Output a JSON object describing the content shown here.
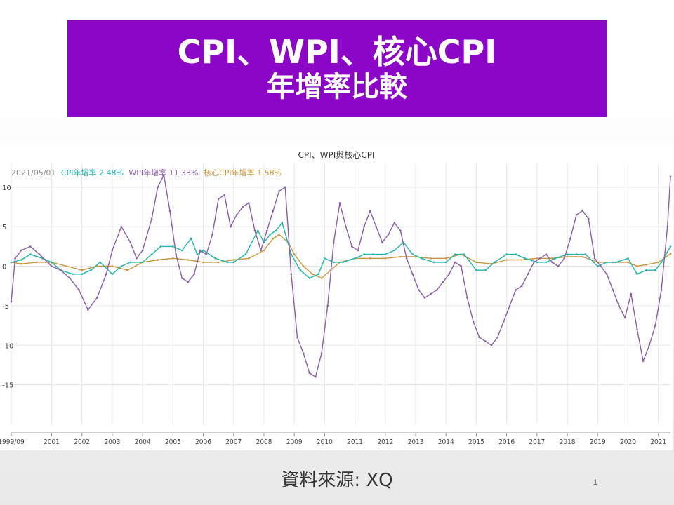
{
  "slide": {
    "title_line1": "CPI、WPI、核心CPI",
    "title_line2": "年增率比較",
    "source": "資料來源: XQ",
    "page_number": "1"
  },
  "chart_data": {
    "type": "line",
    "title": "CPI、WPI與核心CPI",
    "legend": {
      "date": "2021/05/01",
      "entries": [
        "CPI年增率 2.48%",
        "WPI年增率 11.33%",
        "核心CPI年增率 1.58%"
      ],
      "placement": "top-left"
    },
    "x_tick_labels": [
      "1999/09",
      "2001",
      "2002",
      "2003",
      "2004",
      "2005",
      "2006",
      "2007",
      "2008",
      "2009",
      "2010",
      "2011",
      "2012",
      "2013",
      "2014",
      "2015",
      "2016",
      "2017",
      "2018",
      "2019",
      "2020",
      "2021"
    ],
    "x_tick_dates": [
      1999.67,
      2001,
      2002,
      2003,
      2004,
      2005,
      2006,
      2007,
      2008,
      2009,
      2010,
      2011,
      2012,
      2013,
      2014,
      2015,
      2016,
      2017,
      2018,
      2019,
      2020,
      2021
    ],
    "xlim": [
      1999.67,
      2021.4
    ],
    "y_ticks": [
      10,
      5,
      0,
      -5,
      -10,
      -15
    ],
    "y_tick_labels": [
      "10",
      "5",
      "0",
      "-5",
      "-10",
      "-15"
    ],
    "ylim": [
      -20,
      13
    ],
    "grid": true,
    "colors": {
      "cpi": "#1fb5ad",
      "wpi": "#8c5fa8",
      "core": "#c8963c"
    },
    "series": [
      {
        "key": "cpi",
        "x": [
          1999.67,
          2000.0,
          2000.3,
          2000.7,
          2001.0,
          2001.3,
          2001.7,
          2002.0,
          2002.3,
          2002.6,
          2003.0,
          2003.3,
          2003.6,
          2004.0,
          2004.3,
          2004.6,
          2005.0,
          2005.3,
          2005.6,
          2005.8,
          2006.0,
          2006.4,
          2006.8,
          2007.0,
          2007.4,
          2007.8,
          2008.0,
          2008.2,
          2008.4,
          2008.6,
          2008.9,
          2009.2,
          2009.5,
          2009.8,
          2010.0,
          2010.3,
          2010.6,
          2011.0,
          2011.3,
          2011.6,
          2012.0,
          2012.3,
          2012.6,
          2012.9,
          2013.2,
          2013.6,
          2014.0,
          2014.3,
          2014.6,
          2015.0,
          2015.3,
          2015.6,
          2016.0,
          2016.3,
          2016.6,
          2017.0,
          2017.3,
          2017.6,
          2018.0,
          2018.3,
          2018.6,
          2019.0,
          2019.3,
          2019.6,
          2020.0,
          2020.3,
          2020.6,
          2020.9,
          2021.1,
          2021.4
        ],
        "values": [
          0.5,
          0.8,
          1.5,
          1.0,
          0.5,
          -0.5,
          -1.0,
          -1.0,
          -0.5,
          0.5,
          -1.0,
          0.0,
          0.5,
          0.5,
          1.5,
          2.5,
          2.5,
          2.0,
          3.5,
          1.5,
          2.0,
          1.0,
          0.5,
          0.5,
          1.5,
          4.5,
          3.0,
          4.0,
          4.5,
          5.5,
          1.5,
          -0.5,
          -1.5,
          -1.0,
          1.0,
          0.5,
          0.5,
          1.0,
          1.5,
          1.5,
          1.5,
          2.0,
          3.0,
          1.5,
          1.0,
          0.5,
          0.5,
          1.5,
          1.5,
          -0.5,
          -0.5,
          0.5,
          1.5,
          1.5,
          1.0,
          0.5,
          0.5,
          1.0,
          1.5,
          1.5,
          1.5,
          0.0,
          0.5,
          0.5,
          1.0,
          -1.0,
          -0.5,
          -0.5,
          0.5,
          2.48
        ]
      },
      {
        "key": "wpi",
        "x": [
          1999.67,
          1999.8,
          2000.0,
          2000.3,
          2000.6,
          2001.0,
          2001.3,
          2001.6,
          2001.9,
          2002.2,
          2002.5,
          2002.8,
          2003.0,
          2003.3,
          2003.6,
          2003.8,
          2004.0,
          2004.3,
          2004.5,
          2004.7,
          2004.9,
          2005.1,
          2005.3,
          2005.5,
          2005.7,
          2005.9,
          2006.1,
          2006.3,
          2006.5,
          2006.7,
          2006.9,
          2007.1,
          2007.3,
          2007.5,
          2007.7,
          2007.9,
          2008.1,
          2008.3,
          2008.5,
          2008.7,
          2008.9,
          2009.1,
          2009.3,
          2009.5,
          2009.7,
          2009.9,
          2010.1,
          2010.3,
          2010.5,
          2010.7,
          2010.9,
          2011.1,
          2011.3,
          2011.5,
          2011.7,
          2011.9,
          2012.1,
          2012.3,
          2012.5,
          2012.7,
          2012.9,
          2013.1,
          2013.3,
          2013.5,
          2013.7,
          2013.9,
          2014.1,
          2014.3,
          2014.5,
          2014.7,
          2014.9,
          2015.1,
          2015.3,
          2015.5,
          2015.7,
          2015.9,
          2016.1,
          2016.3,
          2016.5,
          2016.7,
          2016.9,
          2017.1,
          2017.3,
          2017.5,
          2017.7,
          2017.9,
          2018.1,
          2018.3,
          2018.5,
          2018.7,
          2018.9,
          2019.1,
          2019.3,
          2019.5,
          2019.7,
          2019.9,
          2020.1,
          2020.3,
          2020.5,
          2020.7,
          2020.9,
          2021.1,
          2021.3,
          2021.4
        ],
        "values": [
          -4.5,
          1.0,
          2.0,
          2.5,
          1.5,
          0.0,
          -0.5,
          -1.5,
          -3.0,
          -5.5,
          -4.0,
          -1.0,
          2.0,
          5.0,
          3.0,
          1.0,
          2.0,
          6.0,
          10.0,
          11.5,
          7.0,
          1.5,
          -1.5,
          -2.0,
          -1.0,
          2.0,
          1.5,
          4.0,
          8.5,
          9.0,
          5.0,
          6.5,
          7.5,
          8.0,
          4.5,
          2.0,
          4.5,
          7.0,
          9.5,
          10.0,
          -1.0,
          -9.0,
          -11.0,
          -13.5,
          -14.0,
          -11.0,
          -5.0,
          3.0,
          8.0,
          5.0,
          2.5,
          2.0,
          5.0,
          7.0,
          5.0,
          3.0,
          4.0,
          5.5,
          4.5,
          1.0,
          -1.0,
          -3.0,
          -4.0,
          -3.5,
          -3.0,
          -2.0,
          -1.0,
          0.5,
          0.0,
          -4.0,
          -7.0,
          -9.0,
          -9.5,
          -10.0,
          -9.0,
          -7.0,
          -5.0,
          -3.0,
          -2.5,
          -1.0,
          0.5,
          1.0,
          1.5,
          0.5,
          0.0,
          1.0,
          3.5,
          6.5,
          7.0,
          6.0,
          1.0,
          0.0,
          -1.0,
          -3.0,
          -5.0,
          -6.5,
          -3.5,
          -8.0,
          -12.0,
          -10.0,
          -7.5,
          -3.0,
          5.0,
          11.33
        ]
      },
      {
        "key": "core",
        "x": [
          1999.67,
          2000.0,
          2000.5,
          2001.0,
          2001.5,
          2002.0,
          2002.5,
          2003.0,
          2003.5,
          2004.0,
          2004.5,
          2005.0,
          2005.5,
          2006.0,
          2006.5,
          2007.0,
          2007.5,
          2008.0,
          2008.3,
          2008.5,
          2008.8,
          2009.0,
          2009.3,
          2009.6,
          2009.9,
          2010.2,
          2010.5,
          2011.0,
          2011.5,
          2012.0,
          2012.5,
          2013.0,
          2013.5,
          2014.0,
          2014.5,
          2015.0,
          2015.5,
          2016.0,
          2016.5,
          2017.0,
          2017.5,
          2018.0,
          2018.5,
          2019.0,
          2019.5,
          2020.0,
          2020.3,
          2020.6,
          2021.0,
          2021.4
        ],
        "values": [
          0.5,
          0.3,
          0.5,
          0.5,
          0.0,
          -0.5,
          0.0,
          0.0,
          -0.5,
          0.5,
          0.8,
          1.0,
          0.8,
          0.5,
          0.5,
          0.8,
          1.0,
          2.0,
          3.5,
          4.0,
          3.0,
          1.5,
          0.0,
          -1.0,
          -1.5,
          -0.5,
          0.5,
          1.0,
          1.0,
          1.0,
          1.2,
          1.2,
          1.0,
          1.0,
          1.5,
          0.5,
          0.3,
          0.8,
          0.8,
          1.0,
          1.0,
          1.2,
          1.2,
          0.5,
          0.5,
          0.5,
          0.0,
          0.2,
          0.5,
          1.58
        ]
      }
    ]
  }
}
